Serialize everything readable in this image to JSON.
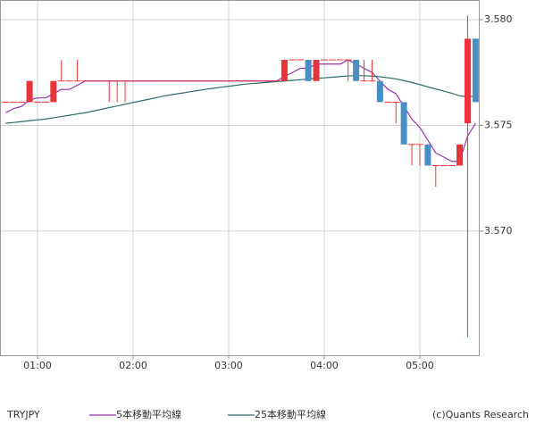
{
  "chart_data": {
    "type": "candlestick",
    "title": "TRYJPY",
    "credit": "(c)Quants Research",
    "x": [
      40,
      45,
      50,
      55,
      60,
      65,
      70,
      75,
      80,
      85,
      90,
      95,
      100,
      105,
      110,
      115,
      120,
      125,
      130,
      135,
      140,
      145,
      150,
      155,
      160,
      165,
      170,
      175,
      180,
      185,
      190,
      195,
      200,
      205,
      210,
      215,
      220,
      225,
      230,
      235,
      240,
      245,
      250,
      255,
      260,
      265,
      270,
      275,
      280,
      285,
      290,
      295,
      300,
      305,
      310,
      315,
      320,
      325,
      330,
      335
    ],
    "xlim": [
      36.45,
      337.6
    ],
    "xticks": [
      {
        "value": 60,
        "label": "01:00"
      },
      {
        "value": 120,
        "label": "02:00"
      },
      {
        "value": 180,
        "label": "03:00"
      },
      {
        "value": 240,
        "label": "04:00"
      },
      {
        "value": 300,
        "label": "05:00"
      }
    ],
    "ylim": [
      3.56413,
      3.58093
    ],
    "yticks": [
      {
        "value": 3.57,
        "label": "3.570"
      },
      {
        "value": 3.575,
        "label": "3.575"
      },
      {
        "value": 3.58,
        "label": "3.580"
      }
    ],
    "grid": true,
    "up_color": "#e8333a",
    "down_color": "#4a8fc4",
    "open": [
      3.5761,
      3.5761,
      3.5761,
      3.5761,
      3.5761,
      3.5761,
      3.5761,
      3.5771,
      3.5771,
      3.5771,
      3.5771,
      3.5771,
      3.5771,
      3.5771,
      3.5771,
      3.5771,
      3.5771,
      3.5771,
      3.5771,
      3.5771,
      3.5771,
      3.5771,
      3.5771,
      3.5771,
      3.5771,
      3.5771,
      3.5771,
      3.5771,
      3.5771,
      3.5771,
      3.5771,
      3.5771,
      3.5771,
      3.5771,
      3.5771,
      3.5771,
      3.5781,
      3.5781,
      3.5781,
      3.5771,
      3.5781,
      3.5781,
      3.5781,
      3.5781,
      3.5781,
      3.5771,
      3.5771,
      3.5771,
      3.5761,
      3.5761,
      3.5761,
      3.5741,
      3.5741,
      3.5741,
      3.5731,
      3.5731,
      3.5731,
      3.5731,
      3.5751,
      3.5791
    ],
    "high": [
      3.5761,
      3.5761,
      3.5761,
      3.5771,
      3.5761,
      3.5761,
      3.5771,
      3.5781,
      3.5771,
      3.5781,
      3.5771,
      3.5771,
      3.5771,
      3.5771,
      3.5771,
      3.5771,
      3.5771,
      3.5771,
      3.5771,
      3.5771,
      3.5771,
      3.5771,
      3.5771,
      3.5771,
      3.5771,
      3.5771,
      3.5771,
      3.5771,
      3.5771,
      3.5771,
      3.5771,
      3.5771,
      3.5771,
      3.5771,
      3.5771,
      3.5781,
      3.5781,
      3.5781,
      3.5781,
      3.5781,
      3.5781,
      3.5781,
      3.5781,
      3.5781,
      3.5781,
      3.5781,
      3.5781,
      3.5771,
      3.5761,
      3.5761,
      3.5761,
      3.5741,
      3.5741,
      3.5741,
      3.5731,
      3.5731,
      3.5731,
      3.5741,
      3.5802,
      3.5791
    ],
    "low": [
      3.5761,
      3.5761,
      3.5761,
      3.5761,
      3.5761,
      3.5761,
      3.5761,
      3.5771,
      3.5771,
      3.5771,
      3.5771,
      3.5771,
      3.5771,
      3.5761,
      3.5761,
      3.5761,
      3.5771,
      3.5771,
      3.5771,
      3.5771,
      3.5771,
      3.5771,
      3.5771,
      3.5771,
      3.5771,
      3.5771,
      3.5771,
      3.5771,
      3.5771,
      3.5771,
      3.5771,
      3.5771,
      3.5771,
      3.5771,
      3.5771,
      3.5771,
      3.5781,
      3.5781,
      3.5771,
      3.5771,
      3.5781,
      3.5781,
      3.5781,
      3.5771,
      3.5771,
      3.5771,
      3.5771,
      3.5761,
      3.5761,
      3.5751,
      3.5741,
      3.5731,
      3.5731,
      3.5731,
      3.5721,
      3.5731,
      3.5731,
      3.5731,
      3.565,
      3.5761
    ],
    "close": [
      3.5761,
      3.5761,
      3.5761,
      3.5771,
      3.5761,
      3.5761,
      3.5771,
      3.5771,
      3.5771,
      3.5771,
      3.5771,
      3.5771,
      3.5771,
      3.5771,
      3.5771,
      3.5771,
      3.5771,
      3.5771,
      3.5771,
      3.5771,
      3.5771,
      3.5771,
      3.5771,
      3.5771,
      3.5771,
      3.5771,
      3.5771,
      3.5771,
      3.5771,
      3.5771,
      3.5771,
      3.5771,
      3.5771,
      3.5771,
      3.5771,
      3.5781,
      3.5781,
      3.5781,
      3.5771,
      3.5781,
      3.5781,
      3.5781,
      3.5781,
      3.5781,
      3.5771,
      3.5771,
      3.5771,
      3.5761,
      3.5761,
      3.5761,
      3.5741,
      3.5741,
      3.5741,
      3.5731,
      3.5731,
      3.5731,
      3.5731,
      3.5741,
      3.5791,
      3.5761
    ],
    "series": [
      {
        "name": "5本移動平均線",
        "color": "#9b30b0",
        "values": [
          3.5756,
          3.5758,
          3.5759,
          3.5762,
          3.5763,
          3.5763,
          3.5765,
          3.5767,
          3.5767,
          3.5769,
          3.5771,
          3.5771,
          3.5771,
          3.5771,
          3.5771,
          3.5771,
          3.5771,
          3.5771,
          3.5771,
          3.5771,
          3.5771,
          3.5771,
          3.5771,
          3.5771,
          3.5771,
          3.5771,
          3.5771,
          3.5771,
          3.5771,
          3.5771,
          3.5771,
          3.5771,
          3.5771,
          3.5771,
          3.5771,
          3.5773,
          3.5775,
          3.5777,
          3.5777,
          3.5779,
          3.5779,
          3.5779,
          3.5779,
          3.5781,
          3.5779,
          3.5777,
          3.5775,
          3.5771,
          3.5767,
          3.5765,
          3.5759,
          3.5753,
          3.5749,
          3.5743,
          3.5737,
          3.5735,
          3.5733,
          3.5733,
          3.5745,
          3.5751
        ]
      },
      {
        "name": "25本移動平均線",
        "color": "#2f6b6b",
        "values": [
          3.5751,
          3.57514,
          3.57518,
          3.57522,
          3.57526,
          3.5753,
          3.57536,
          3.57542,
          3.57548,
          3.57554,
          3.5756,
          3.57568,
          3.57576,
          3.57584,
          3.57592,
          3.576,
          3.57608,
          3.57616,
          3.57624,
          3.57632,
          3.5764,
          3.57646,
          3.57652,
          3.57658,
          3.57664,
          3.5767,
          3.57675,
          3.5768,
          3.57685,
          3.5769,
          3.57695,
          3.57698,
          3.57701,
          3.57704,
          3.57707,
          3.5771,
          3.57713,
          3.57716,
          3.57719,
          3.57722,
          3.57725,
          3.57728,
          3.57731,
          3.57734,
          3.57735,
          3.57735,
          3.57733,
          3.5773,
          3.57725,
          3.5772,
          3.57712,
          3.57703,
          3.57693,
          3.57682,
          3.57672,
          3.57662,
          3.57652,
          3.5764,
          3.57635,
          3.5764
        ]
      }
    ]
  }
}
